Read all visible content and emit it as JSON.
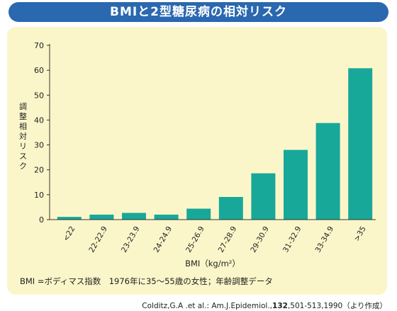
{
  "header": {
    "title": "BMIと2型糖尿病の相対リスク"
  },
  "colors": {
    "bar": "#17a89a",
    "panel": "#fbf6c9",
    "title_bg": "#2a68b0"
  },
  "chart_data": {
    "type": "bar",
    "categories": [
      "<22",
      "22-22.9",
      "23-23.9",
      "24-24.9",
      "25-26.9",
      "27-28.9",
      "29-30.9",
      "31-32.9",
      "33-34.9",
      ">35"
    ],
    "values": [
      1.1,
      2.0,
      2.7,
      2.0,
      4.4,
      9.1,
      18.6,
      28.0,
      38.8,
      60.8
    ],
    "ylabel": "調整相対リスク",
    "xlabel": "BMI（kg/m²）",
    "yticks": [
      0,
      10,
      20,
      30,
      40,
      50,
      60,
      70
    ],
    "ylim": [
      0,
      70
    ],
    "grid": false
  },
  "footer": {
    "note": "BMI =ボディマス指数　1976年に35〜55歳の女性；年齢調整データ",
    "source_pre": "Colditz,G.A .et al.: Am.J.Epidemiol.,",
    "source_vol": "132",
    "source_post": ",501-513,1990（より作成）"
  }
}
